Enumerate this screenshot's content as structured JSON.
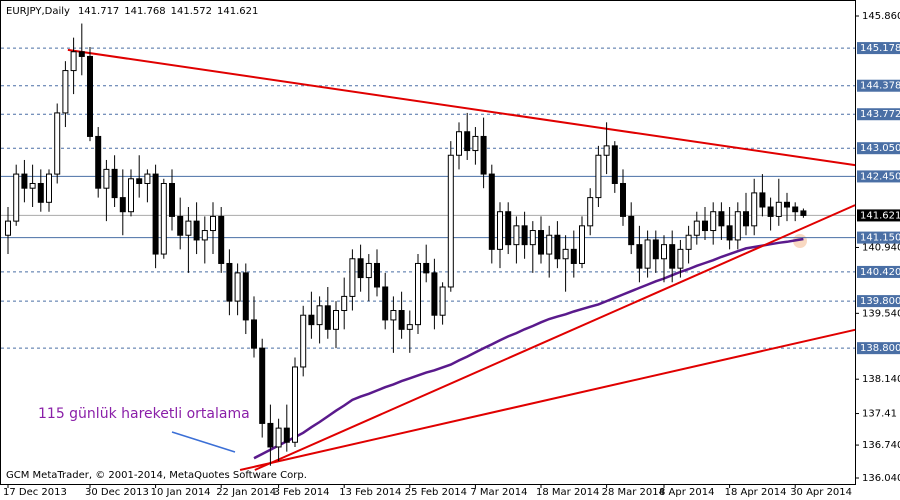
{
  "chart_data": {
    "type": "candlestick",
    "title": "EURJPY,Daily",
    "header_ohlc": [
      141.717,
      141.768,
      141.572,
      141.621
    ],
    "footer": "GCM MetaTrader, © 2001-2014, MetaQuotes Software Corp.",
    "annotation": "115 günlük hareketli ortalama",
    "categories": [
      "17 Dec 2013",
      null,
      null,
      null,
      null,
      null,
      null,
      null,
      null,
      null,
      "30 Dec 2013",
      null,
      null,
      null,
      null,
      null,
      null,
      null,
      "10 Jan 2014",
      null,
      null,
      null,
      null,
      null,
      null,
      null,
      "22 Jan 2014",
      null,
      null,
      null,
      null,
      null,
      null,
      "3 Feb 2014",
      null,
      null,
      null,
      null,
      null,
      null,
      null,
      "13 Feb 2014",
      null,
      null,
      null,
      null,
      null,
      null,
      null,
      "25 Feb 2014",
      null,
      null,
      null,
      null,
      null,
      null,
      null,
      "7 Mar 2014",
      null,
      null,
      null,
      null,
      null,
      null,
      null,
      "18 Mar 2014",
      null,
      null,
      null,
      null,
      null,
      null,
      null,
      "28 Mar 2014",
      null,
      null,
      null,
      null,
      null,
      null,
      "8 Apr 2014",
      null,
      null,
      null,
      null,
      null,
      null,
      null,
      "18 Apr 2014",
      null,
      null,
      null,
      null,
      null,
      null,
      null,
      "30 Apr 2014",
      null
    ],
    "open": [
      141.2,
      141.5,
      142.5,
      142.2,
      142.3,
      141.9,
      142.5,
      143.8,
      144.7,
      145.1,
      145.0,
      143.3,
      142.2,
      142.6,
      142.0,
      141.7,
      142.4,
      142.3,
      142.5,
      140.8,
      142.3,
      141.6,
      141.2,
      141.5,
      141.1,
      141.3,
      141.6,
      140.6,
      139.8,
      140.4,
      139.4,
      138.8,
      137.2,
      136.7,
      137.1,
      136.8,
      138.4,
      139.5,
      139.3,
      139.7,
      139.2,
      139.6,
      139.9,
      140.7,
      140.3,
      140.6,
      140.1,
      139.4,
      139.6,
      139.2,
      139.3,
      140.6,
      140.4,
      139.5,
      140.1,
      142.9,
      143.4,
      143.0,
      143.3,
      142.5,
      140.9,
      141.7,
      141.0,
      141.4,
      141.0,
      141.3,
      140.8,
      141.2,
      140.7,
      140.9,
      140.6,
      141.4,
      142.0,
      142.9,
      143.1,
      142.3,
      141.6,
      141.0,
      140.5,
      141.1,
      140.7,
      141.0,
      140.5,
      140.9,
      141.2,
      141.5,
      141.3,
      141.7,
      141.4,
      141.1,
      141.7,
      141.4,
      142.1,
      141.8,
      141.6,
      141.9,
      141.8,
      141.717
    ],
    "high": [
      141.8,
      142.7,
      142.8,
      142.7,
      142.6,
      142.6,
      144.0,
      144.9,
      145.4,
      145.7,
      145.2,
      143.5,
      142.8,
      142.9,
      142.6,
      142.6,
      142.9,
      142.6,
      142.7,
      142.4,
      142.6,
      142.0,
      141.8,
      141.9,
      141.6,
      141.9,
      141.8,
      140.9,
      140.6,
      140.6,
      139.9,
      139.0,
      137.6,
      137.3,
      137.6,
      138.6,
      139.7,
      140.0,
      139.9,
      140.1,
      139.8,
      140.3,
      140.9,
      141.0,
      140.8,
      140.9,
      140.4,
      139.9,
      140.0,
      139.6,
      140.8,
      141.0,
      140.7,
      140.2,
      143.2,
      143.6,
      143.8,
      143.5,
      143.7,
      142.7,
      141.9,
      141.9,
      141.6,
      141.7,
      141.5,
      141.6,
      141.4,
      141.5,
      141.2,
      141.3,
      141.6,
      142.2,
      143.1,
      143.6,
      143.2,
      142.6,
      141.9,
      141.4,
      141.3,
      141.3,
      141.2,
      141.3,
      141.1,
      141.4,
      141.7,
      141.8,
      141.9,
      141.9,
      141.8,
      141.9,
      142.1,
      142.4,
      142.5,
      142.0,
      142.4,
      142.1,
      141.9,
      141.768
    ],
    "low": [
      140.8,
      141.4,
      141.9,
      141.8,
      141.7,
      141.7,
      142.3,
      143.5,
      144.2,
      144.6,
      143.2,
      142.0,
      141.5,
      141.8,
      141.2,
      141.6,
      142.0,
      141.9,
      140.5,
      140.7,
      141.3,
      140.9,
      140.4,
      140.8,
      140.6,
      140.8,
      140.4,
      139.5,
      139.5,
      139.1,
      138.6,
      136.9,
      136.3,
      136.4,
      136.6,
      136.7,
      138.2,
      139.0,
      138.9,
      139.0,
      138.8,
      139.2,
      139.6,
      140.0,
      139.8,
      139.9,
      139.2,
      138.7,
      139.0,
      138.7,
      139.1,
      140.2,
      139.2,
      139.3,
      140.0,
      142.6,
      142.8,
      142.7,
      142.2,
      140.6,
      140.5,
      140.8,
      140.6,
      140.7,
      140.4,
      140.6,
      140.3,
      140.5,
      140.0,
      140.3,
      140.5,
      141.2,
      141.8,
      142.5,
      142.1,
      141.4,
      140.8,
      140.2,
      140.3,
      140.4,
      140.2,
      140.2,
      140.3,
      140.6,
      141.0,
      141.1,
      141.0,
      141.1,
      140.9,
      140.9,
      141.2,
      141.2,
      141.6,
      141.3,
      141.4,
      141.5,
      141.5,
      141.572
    ],
    "close": [
      141.5,
      142.5,
      142.2,
      142.3,
      141.9,
      142.5,
      143.8,
      144.7,
      145.1,
      145.0,
      143.3,
      142.2,
      142.6,
      142.0,
      141.7,
      142.4,
      142.3,
      142.5,
      140.8,
      142.3,
      141.6,
      141.2,
      141.5,
      141.1,
      141.3,
      141.6,
      140.6,
      139.8,
      140.4,
      139.4,
      138.8,
      137.2,
      136.7,
      137.1,
      136.8,
      138.4,
      139.5,
      139.3,
      139.7,
      139.2,
      139.6,
      139.9,
      140.7,
      140.3,
      140.6,
      140.1,
      139.4,
      139.6,
      139.2,
      139.3,
      140.6,
      140.4,
      139.5,
      140.1,
      142.9,
      143.4,
      143.0,
      143.3,
      142.5,
      140.9,
      141.7,
      141.0,
      141.4,
      141.0,
      141.3,
      140.8,
      141.2,
      140.7,
      140.9,
      140.6,
      141.4,
      142.0,
      142.9,
      143.1,
      142.3,
      141.6,
      141.0,
      140.5,
      141.1,
      140.7,
      141.0,
      140.5,
      140.9,
      141.2,
      141.5,
      141.3,
      141.7,
      141.4,
      141.1,
      141.7,
      141.4,
      142.1,
      141.8,
      141.6,
      141.9,
      141.8,
      141.7,
      141.621
    ],
    "moving_average": {
      "color": "#5a1a8c",
      "values": [
        null,
        null,
        null,
        null,
        null,
        null,
        null,
        null,
        null,
        null,
        null,
        null,
        null,
        null,
        null,
        null,
        null,
        null,
        null,
        null,
        null,
        null,
        null,
        null,
        null,
        null,
        null,
        null,
        null,
        null,
        136.46,
        136.55,
        136.64,
        136.73,
        136.82,
        136.91,
        137.0,
        137.12,
        137.23,
        137.35,
        137.47,
        137.58,
        137.7,
        137.77,
        137.83,
        137.9,
        137.97,
        138.03,
        138.1,
        138.16,
        138.22,
        138.28,
        138.33,
        138.39,
        138.45,
        138.54,
        138.62,
        138.71,
        138.8,
        138.88,
        138.97,
        139.05,
        139.12,
        139.2,
        139.27,
        139.35,
        139.42,
        139.47,
        139.52,
        139.58,
        139.63,
        139.68,
        139.73,
        139.8,
        139.87,
        139.94,
        140.01,
        140.08,
        140.15,
        140.22,
        140.28,
        140.35,
        140.42,
        140.48,
        140.55,
        140.61,
        140.67,
        140.74,
        140.8,
        140.86,
        140.92,
        140.95,
        140.98,
        141.01,
        141.04,
        141.06,
        141.09,
        141.12
      ]
    },
    "trendlines": [
      {
        "color": "#e00000",
        "from": [
          7.3,
          145.14
        ],
        "to": [
          103.3,
          142.69
        ]
      },
      {
        "color": "#e00000",
        "from": [
          30.1,
          136.21
        ],
        "to": [
          103.3,
          141.84
        ]
      },
      {
        "color": "#e00000",
        "from": [
          28.3,
          136.21
        ],
        "to": [
          103.3,
          139.19
        ]
      }
    ],
    "levels": [
      {
        "value": 145.178,
        "style": "dashed"
      },
      {
        "value": 144.378,
        "style": "dashed"
      },
      {
        "value": 143.772,
        "style": "dashed"
      },
      {
        "value": 143.05,
        "label": "143.050",
        "style": "dashed"
      },
      {
        "value": 142.45,
        "label": "142.450",
        "style": "solid"
      },
      {
        "value": 141.15,
        "label": "141.150",
        "style": "solid"
      },
      {
        "value": 140.42,
        "label": "140.420",
        "style": "dashed"
      },
      {
        "value": 139.8,
        "label": "139.800",
        "style": "dashed"
      },
      {
        "value": 138.8,
        "label": "138.800",
        "style": "dashed"
      }
    ],
    "level_color": "#4a6fa5",
    "ylim": [
      136.04,
      145.86
    ],
    "yticks": [
      {
        "value": 145.86,
        "label": "145.860"
      },
      {
        "value": 140.94,
        "label": "140.940"
      },
      {
        "value": 139.54,
        "label": "139.540"
      },
      {
        "value": 138.14,
        "label": "138.140"
      },
      137.41,
      {
        "value": 136.74,
        "label": "136.740"
      },
      {
        "value": 136.04,
        "label": "136.040"
      }
    ],
    "bull_color": "#ffffff",
    "bear_color": "#000000"
  }
}
